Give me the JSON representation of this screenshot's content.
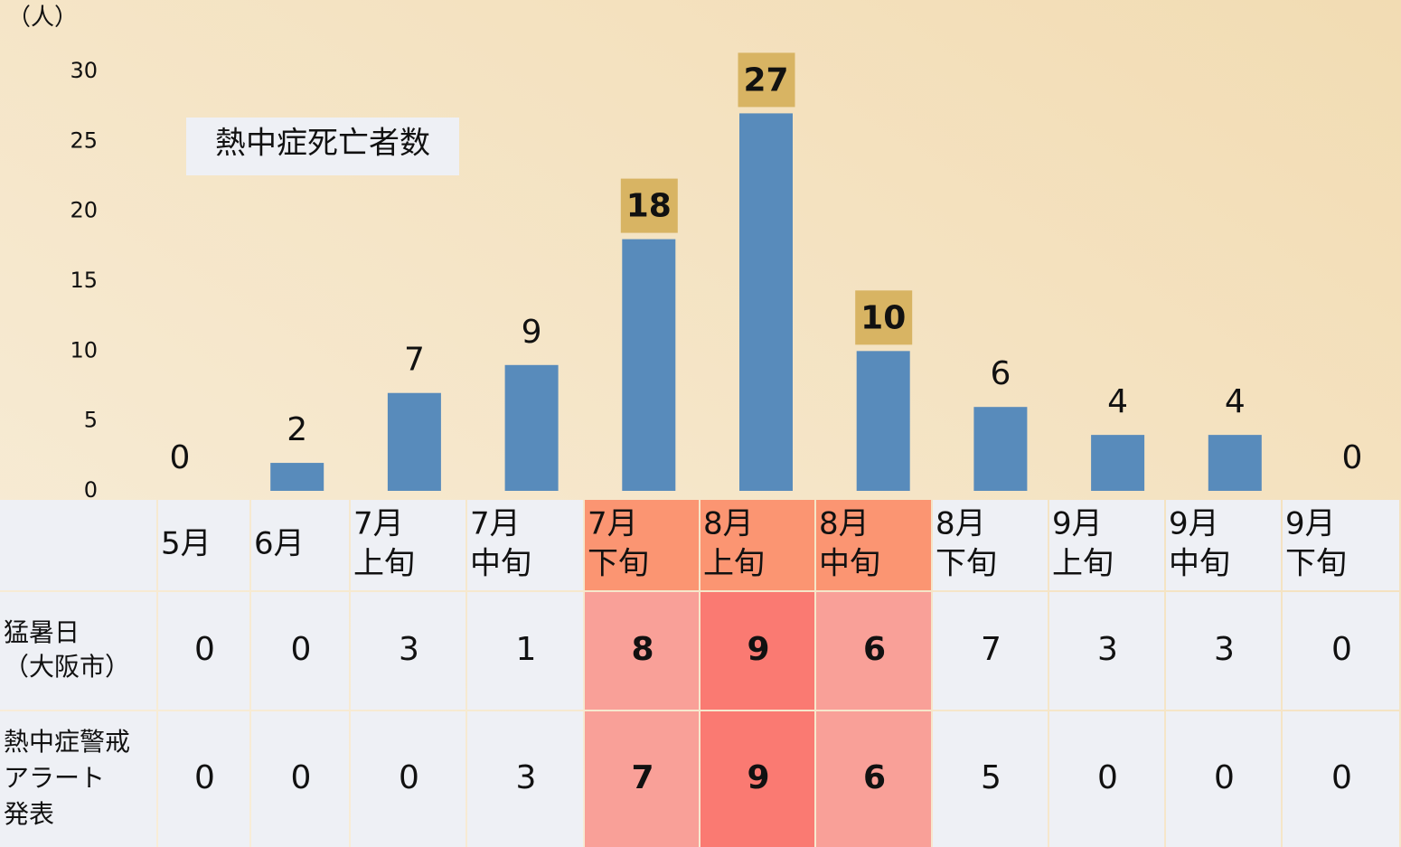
{
  "chart_data": {
    "type": "bar",
    "y_label": "（人）",
    "annotation": "熱中症死亡者数",
    "categories": [
      [
        "5月"
      ],
      [
        "6月"
      ],
      [
        "7月",
        "上旬"
      ],
      [
        "7月",
        "中旬"
      ],
      [
        "7月",
        "下旬"
      ],
      [
        "8月",
        "上旬"
      ],
      [
        "8月",
        "中旬"
      ],
      [
        "8月",
        "下旬"
      ],
      [
        "9月",
        "上旬"
      ],
      [
        "9月",
        "中旬"
      ],
      [
        "9月",
        "下旬"
      ]
    ],
    "values": [
      0,
      2,
      7,
      9,
      18,
      27,
      10,
      6,
      4,
      4,
      0
    ],
    "color": "#588bbb",
    "highlight": [
      4,
      5,
      6
    ],
    "highlight_color": "#d8b463",
    "ylim": [
      0,
      30
    ],
    "yticks": [
      0,
      5,
      10,
      15,
      20,
      25,
      30
    ],
    "table": {
      "rows": [
        {
          "label": [
            "猛暑日",
            "（大阪市）"
          ],
          "values": [
            0,
            0,
            3,
            1,
            8,
            9,
            6,
            7,
            3,
            3,
            0
          ]
        },
        {
          "label": [
            "熱中症警戒",
            "アラート",
            "発表"
          ],
          "values": [
            0,
            0,
            0,
            3,
            7,
            9,
            6,
            5,
            0,
            0,
            0
          ]
        }
      ]
    }
  }
}
